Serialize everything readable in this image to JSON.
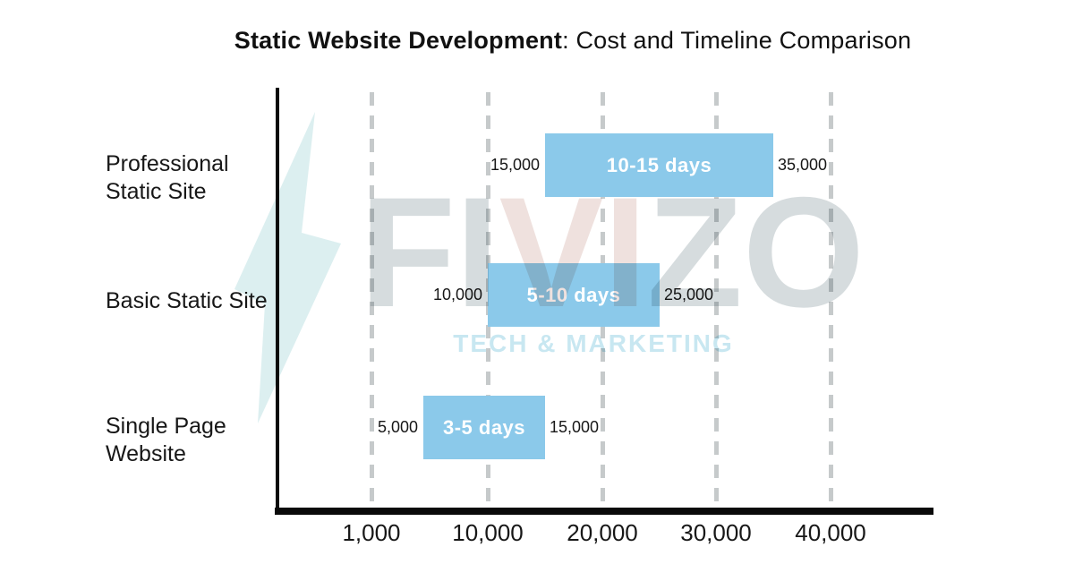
{
  "title": {
    "bold": "Static Website Development",
    "rest": ": Cost and Timeline Comparison"
  },
  "watermark": {
    "part1": "FI",
    "part2": "VI",
    "part3": "ZO",
    "tagline": "TECH & MARKETING",
    "gray": "#D6DCDE",
    "pink": "#EFE1DE",
    "tagline_color": "#C8E7F1",
    "bolt_color": "#DCEFF0"
  },
  "chart_data": {
    "type": "bar",
    "orientation": "horizontal-range",
    "title": "Static Website Development: Cost and Timeline Comparison",
    "categories": [
      "Professional Static Site",
      "Basic Static Site",
      "Single Page Website"
    ],
    "series": [
      {
        "name": "Professional Static Site",
        "label_lines": [
          "Professional",
          "Static Site"
        ],
        "cost_min": 15000,
        "cost_max": 35000,
        "cost_min_label": "15,000",
        "cost_max_label": "35,000",
        "timeline": "10-15 days"
      },
      {
        "name": "Basic Static Site",
        "label_lines": [
          "Basic Static Site"
        ],
        "cost_min": 10000,
        "cost_max": 25000,
        "cost_min_label": "10,000",
        "cost_max_label": "25,000",
        "timeline": "5-10 days"
      },
      {
        "name": "Single Page Website",
        "label_lines": [
          "Single Page",
          "Website"
        ],
        "cost_min": 5000,
        "cost_max": 15000,
        "cost_min_label": "5,000",
        "cost_max_label": "15,000",
        "timeline": "3-5 days"
      }
    ],
    "x_ticks": [
      {
        "value": 1000,
        "label": "1,000"
      },
      {
        "value": 10000,
        "label": "10,000"
      },
      {
        "value": 20000,
        "label": "20,000"
      },
      {
        "value": 30000,
        "label": "30,000"
      },
      {
        "value": 40000,
        "label": "40,000"
      }
    ],
    "xlabel": "",
    "ylabel": "",
    "xlim_note": "non-linear axis: 1,000 then 10,000 to 40,000 at equal spacing",
    "grid": "dashed-vertical",
    "legend": "none",
    "bar_color": "#8BC9EA",
    "bar_label_color": "#FFFFFF",
    "gridline_color": "#C6CACB",
    "axis_color": "#0A0A0A"
  }
}
